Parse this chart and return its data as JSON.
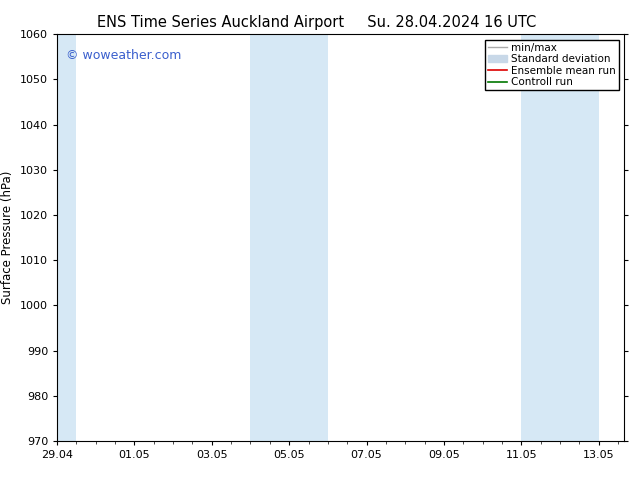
{
  "title_left": "ENS Time Series Auckland Airport",
  "title_right": "Su. 28.04.2024 16 UTC",
  "ylabel": "Surface Pressure (hPa)",
  "ylim": [
    970,
    1060
  ],
  "yticks": [
    970,
    980,
    990,
    1000,
    1010,
    1020,
    1030,
    1040,
    1050,
    1060
  ],
  "xlim": [
    0,
    14.667
  ],
  "xtick_positions": [
    0,
    2,
    4,
    6,
    8,
    10,
    12,
    14
  ],
  "xtick_labels": [
    "29.04",
    "01.05",
    "03.05",
    "05.05",
    "07.05",
    "09.05",
    "11.05",
    "13.05"
  ],
  "shaded_bands": [
    {
      "xmin": -0.1,
      "xmax": 0.5
    },
    {
      "xmin": 5.0,
      "xmax": 7.0
    },
    {
      "xmin": 12.0,
      "xmax": 14.0
    }
  ],
  "shade_color": "#d6e8f5",
  "background_color": "#ffffff",
  "watermark": "© woweather.com",
  "watermark_color": "#3a5fcd",
  "legend_items": [
    {
      "label": "min/max",
      "color": "#aaaaaa",
      "lw": 1,
      "type": "line"
    },
    {
      "label": "Standard deviation",
      "color": "#c8d8e8",
      "lw": 8,
      "type": "patch"
    },
    {
      "label": "Ensemble mean run",
      "color": "#dd0000",
      "lw": 1.2,
      "type": "line"
    },
    {
      "label": "Controll run",
      "color": "#007700",
      "lw": 1.2,
      "type": "line"
    }
  ],
  "title_fontsize": 10.5,
  "tick_fontsize": 8,
  "ylabel_fontsize": 8.5,
  "watermark_fontsize": 9,
  "legend_fontsize": 7.5
}
